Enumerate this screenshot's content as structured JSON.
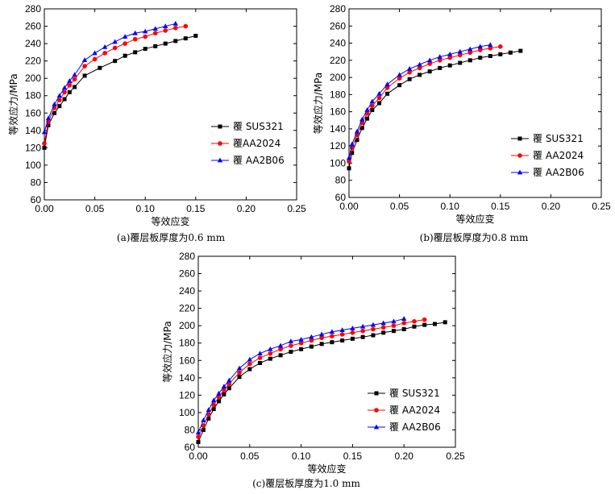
{
  "chart_data": [
    {
      "type": "line",
      "caption": "(a)覆层板厚度为0.6 mm",
      "xlabel": "等效应变",
      "ylabel": "等效应力/MPa",
      "xlim": [
        0,
        0.25
      ],
      "ylim": [
        60,
        280
      ],
      "xticks": [
        "0.00",
        "0.05",
        "0.10",
        "0.15",
        "0.20",
        "0.25"
      ],
      "yticks": [
        "60",
        "80",
        "100",
        "120",
        "140",
        "160",
        "180",
        "200",
        "220",
        "240",
        "260",
        "280"
      ],
      "legend_position": "right",
      "series": [
        {
          "name": "覆 SUS321",
          "color": "#000000",
          "marker": "square",
          "x": [
            0.0,
            0.004,
            0.01,
            0.015,
            0.02,
            0.025,
            0.03,
            0.04,
            0.055,
            0.07,
            0.08,
            0.09,
            0.1,
            0.11,
            0.12,
            0.13,
            0.14,
            0.15
          ],
          "y": [
            120,
            146,
            160,
            168,
            176,
            184,
            190,
            203,
            212,
            220,
            226,
            230,
            234,
            237,
            240,
            243,
            246,
            249
          ]
        },
        {
          "name": "覆AA2024",
          "color": "#ff0000",
          "marker": "circle",
          "x": [
            0.0,
            0.004,
            0.01,
            0.015,
            0.02,
            0.025,
            0.03,
            0.04,
            0.05,
            0.06,
            0.07,
            0.08,
            0.09,
            0.1,
            0.11,
            0.12,
            0.13,
            0.14
          ],
          "y": [
            125,
            150,
            166,
            175,
            184,
            192,
            199,
            214,
            222,
            229,
            235,
            240,
            245,
            248,
            252,
            255,
            258,
            260
          ]
        },
        {
          "name": "覆 AA2B06",
          "color": "#0000ff",
          "marker": "triangle",
          "x": [
            0.0,
            0.004,
            0.01,
            0.015,
            0.02,
            0.025,
            0.03,
            0.04,
            0.05,
            0.06,
            0.07,
            0.08,
            0.09,
            0.1,
            0.11,
            0.12,
            0.13
          ],
          "y": [
            138,
            154,
            170,
            180,
            189,
            197,
            204,
            221,
            229,
            236,
            242,
            248,
            252,
            254,
            257,
            260,
            263
          ]
        }
      ]
    },
    {
      "type": "line",
      "caption": "(b)覆层板厚度为0.8 mm",
      "xlabel": "等效应变",
      "ylabel": "等效应力/MPa",
      "xlim": [
        0,
        0.25
      ],
      "ylim": [
        60,
        280
      ],
      "xticks": [
        "0.00",
        "0.05",
        "0.10",
        "0.15",
        "0.20",
        "0.25"
      ],
      "yticks": [
        "60",
        "80",
        "100",
        "120",
        "140",
        "160",
        "180",
        "200",
        "220",
        "240",
        "260",
        "280"
      ],
      "legend_position": "right",
      "series": [
        {
          "name": "覆 SUS321",
          "color": "#000000",
          "marker": "square",
          "x": [
            0.0,
            0.003,
            0.008,
            0.013,
            0.018,
            0.023,
            0.03,
            0.038,
            0.05,
            0.06,
            0.07,
            0.08,
            0.09,
            0.1,
            0.11,
            0.12,
            0.13,
            0.14,
            0.15,
            0.16,
            0.17
          ],
          "y": [
            94,
            112,
            127,
            141,
            152,
            162,
            170,
            181,
            191,
            198,
            203,
            207,
            211,
            214,
            217,
            220,
            223,
            225,
            227,
            229,
            231
          ]
        },
        {
          "name": "覆 AA2024",
          "color": "#ff0000",
          "marker": "circle",
          "x": [
            0.0,
            0.003,
            0.008,
            0.013,
            0.018,
            0.023,
            0.03,
            0.038,
            0.05,
            0.06,
            0.07,
            0.08,
            0.09,
            0.1,
            0.11,
            0.12,
            0.13,
            0.14,
            0.15
          ],
          "y": [
            102,
            118,
            133,
            147,
            158,
            167,
            176,
            188,
            199,
            206,
            211,
            216,
            220,
            223,
            226,
            229,
            232,
            234,
            236
          ]
        },
        {
          "name": "覆 AA2B06",
          "color": "#0000ff",
          "marker": "triangle",
          "x": [
            0.0,
            0.003,
            0.008,
            0.013,
            0.018,
            0.023,
            0.03,
            0.038,
            0.05,
            0.06,
            0.07,
            0.08,
            0.09,
            0.1,
            0.11,
            0.12,
            0.13,
            0.14
          ],
          "y": [
            106,
            122,
            137,
            151,
            162,
            172,
            181,
            192,
            203,
            210,
            215,
            220,
            224,
            227,
            230,
            233,
            236,
            238
          ]
        }
      ]
    },
    {
      "type": "line",
      "caption": "(c)覆层板厚度为1.0 mm",
      "xlabel": "等效应变",
      "ylabel": "等效应力/MPa",
      "xlim": [
        0,
        0.25
      ],
      "ylim": [
        60,
        280
      ],
      "xticks": [
        "0.00",
        "0.05",
        "0.10",
        "0.15",
        "0.20",
        "0.25"
      ],
      "yticks": [
        "60",
        "80",
        "100",
        "120",
        "140",
        "160",
        "180",
        "200",
        "220",
        "240",
        "260",
        "280"
      ],
      "legend_position": "bottom-right",
      "series": [
        {
          "name": "覆 SUS321",
          "color": "#000000",
          "marker": "square",
          "x": [
            0.0,
            0.005,
            0.01,
            0.015,
            0.02,
            0.025,
            0.03,
            0.04,
            0.05,
            0.06,
            0.07,
            0.08,
            0.09,
            0.1,
            0.11,
            0.12,
            0.13,
            0.14,
            0.15,
            0.16,
            0.17,
            0.18,
            0.19,
            0.2,
            0.21,
            0.22,
            0.23,
            0.24
          ],
          "y": [
            66,
            80,
            93,
            104,
            113,
            121,
            128,
            141,
            150,
            157,
            162,
            166,
            170,
            173,
            176,
            179,
            181,
            183,
            185,
            187,
            189,
            192,
            194,
            196,
            199,
            201,
            202,
            204
          ]
        },
        {
          "name": "覆 AA2024",
          "color": "#ff0000",
          "marker": "circle",
          "x": [
            0.0,
            0.005,
            0.01,
            0.015,
            0.02,
            0.025,
            0.03,
            0.04,
            0.05,
            0.06,
            0.07,
            0.08,
            0.09,
            0.1,
            0.11,
            0.12,
            0.13,
            0.14,
            0.15,
            0.16,
            0.17,
            0.18,
            0.19,
            0.2,
            0.21,
            0.22
          ],
          "y": [
            72,
            85,
            98,
            109,
            118,
            126,
            133,
            146,
            156,
            163,
            168,
            173,
            177,
            180,
            183,
            186,
            188,
            190,
            192,
            194,
            196,
            198,
            200,
            203,
            205,
            207
          ]
        },
        {
          "name": "覆 AA2B06",
          "color": "#0000ff",
          "marker": "triangle",
          "x": [
            0.0,
            0.005,
            0.01,
            0.015,
            0.02,
            0.025,
            0.03,
            0.04,
            0.05,
            0.06,
            0.07,
            0.08,
            0.09,
            0.1,
            0.11,
            0.12,
            0.13,
            0.14,
            0.15,
            0.16,
            0.17,
            0.18,
            0.19,
            0.2
          ],
          "y": [
            77,
            91,
            103,
            114,
            122,
            130,
            137,
            151,
            161,
            168,
            173,
            177,
            182,
            184,
            187,
            190,
            193,
            195,
            197,
            199,
            201,
            203,
            205,
            208
          ]
        }
      ]
    }
  ]
}
